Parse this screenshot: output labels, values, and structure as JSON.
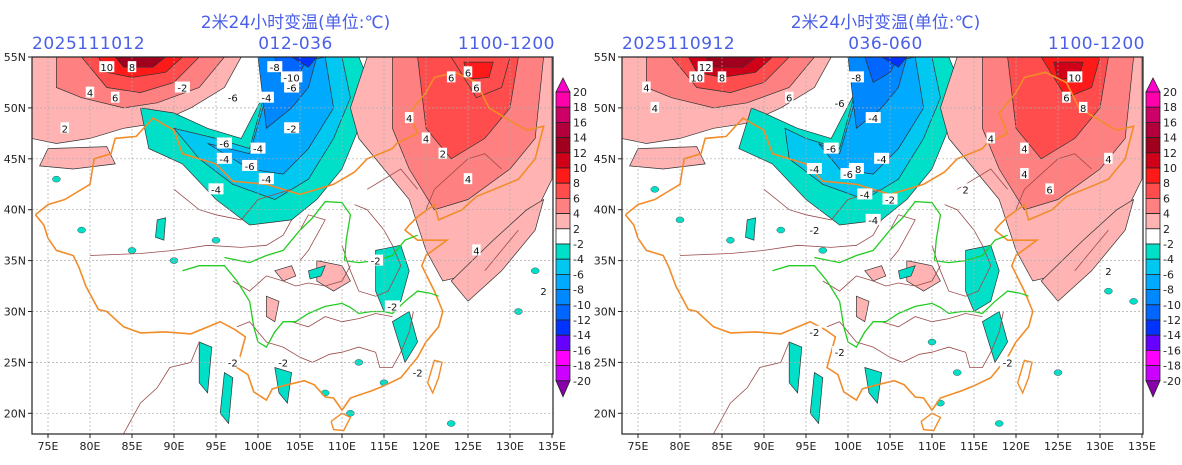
{
  "panels": [
    {
      "title": "2米24小时变温(单位:℃)",
      "init_time": "2025111012",
      "forecast_range": "012-036",
      "valid_label": "1100-1200"
    },
    {
      "title": "2米24小时变温(单位:℃)",
      "init_time": "2025110912",
      "forecast_range": "036-060",
      "valid_label": "1100-1200"
    }
  ],
  "axes": {
    "lat_labels": [
      "55N",
      "50N",
      "45N",
      "40N",
      "35N",
      "30N",
      "25N",
      "20N"
    ],
    "lon_labels": [
      "75E",
      "80E",
      "85E",
      "90E",
      "95E",
      "100E",
      "105E",
      "110E",
      "115E",
      "120E",
      "125E",
      "130E",
      "135E"
    ]
  },
  "colorbar": {
    "labels": [
      "20",
      "18",
      "16",
      "14",
      "12",
      "10",
      "8",
      "6",
      "4",
      "2",
      "-2",
      "-4",
      "-6",
      "-8",
      "-10",
      "-12",
      "-14",
      "-16",
      "-18",
      "-20"
    ],
    "colors": [
      "#ff00aa",
      "#cc0066",
      "#b3003c",
      "#a0001e",
      "#d00018",
      "#ff1a1a",
      "#ff4d4d",
      "#ff8080",
      "#ffb3b3",
      "#ffffff",
      "#00e0c8",
      "#00c8f0",
      "#00aaff",
      "#0088ff",
      "#0066ff",
      "#0033ff",
      "#6600ff",
      "#ff00ff",
      "#cc00ff",
      "#8800aa"
    ],
    "over_color": "#ff00cc",
    "under_color": "#8800aa"
  },
  "map_colors": {
    "border_country": "#f28c28",
    "border_province": "#9b4a4a",
    "river": "#22cc22",
    "grid": "#aaaaaa"
  }
}
